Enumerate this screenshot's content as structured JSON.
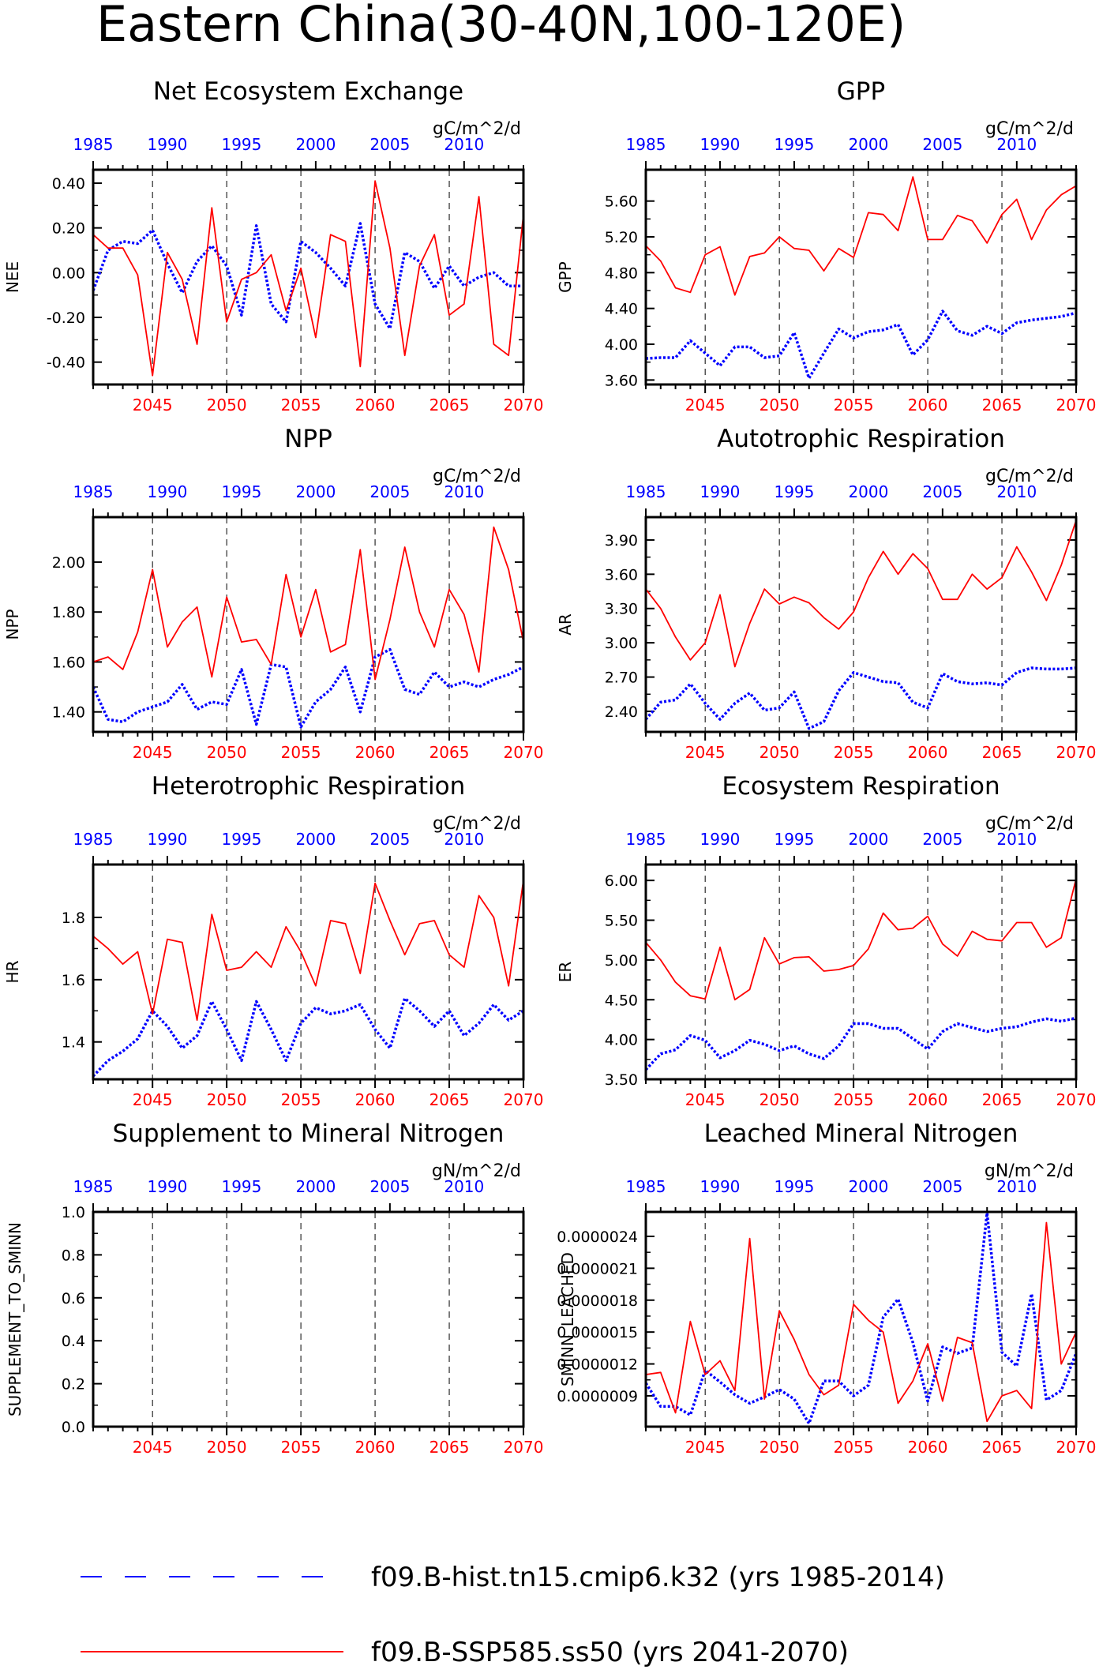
{
  "title": "Eastern China(30-40N,100-120E)",
  "colors": {
    "hist": "#0000ff",
    "ssp": "#ff0000",
    "axis": "#000000"
  },
  "legend": [
    {
      "label": "f09.B-hist.tn15.cmip6.k32 (yrs 1985-2014)",
      "color": "#0000ff",
      "style": "dashed"
    },
    {
      "label": "f09.B-SSP585.ss50 (yrs 2041-2070)",
      "color": "#ff0000",
      "style": "solid"
    }
  ],
  "chart_data": [
    {
      "type": "line",
      "title": "Net Ecosystem Exchange",
      "ylabel": "NEE",
      "units": "gC/m^2/d",
      "top_axis_ticks": [
        "1985",
        "1990",
        "1995",
        "2000",
        "2005",
        "2010"
      ],
      "bottom_axis_ticks": [
        "2045",
        "2050",
        "2055",
        "2060",
        "2065",
        "2070"
      ],
      "ylim": [
        -0.5,
        0.46
      ],
      "yticks": [
        -0.4,
        -0.2,
        0.0,
        0.2,
        0.4
      ],
      "ytick_labels": [
        "-0.40",
        "-0.20",
        "0.00",
        "0.20",
        "0.40"
      ],
      "series": [
        {
          "name": "f09.B-hist.tn15.cmip6.k32 (yrs 1985-2014)",
          "x_start": 1985,
          "values": [
            -0.08,
            0.1,
            0.14,
            0.13,
            0.19,
            0.04,
            -0.09,
            0.05,
            0.12,
            0.03,
            -0.19,
            0.21,
            -0.14,
            -0.22,
            0.14,
            0.09,
            0.02,
            -0.06,
            0.22,
            -0.14,
            -0.25,
            0.09,
            0.05,
            -0.07,
            0.03,
            -0.06,
            -0.02,
            0.0,
            -0.06,
            -0.06
          ]
        },
        {
          "name": "f09.B-SSP585.ss50 (yrs 2041-2070)",
          "x_start": 2041,
          "values": [
            0.17,
            0.11,
            0.11,
            -0.01,
            -0.46,
            0.09,
            -0.03,
            -0.32,
            0.29,
            -0.22,
            -0.03,
            0.0,
            0.08,
            -0.17,
            0.02,
            -0.29,
            0.17,
            0.14,
            -0.42,
            0.41,
            0.11,
            -0.37,
            0.03,
            0.17,
            -0.19,
            -0.14,
            0.34,
            -0.32,
            -0.37,
            0.26
          ]
        }
      ]
    },
    {
      "type": "line",
      "title": "GPP",
      "ylabel": "GPP",
      "units": "gC/m^2/d",
      "top_axis_ticks": [
        "1985",
        "1990",
        "1995",
        "2000",
        "2005",
        "2010"
      ],
      "bottom_axis_ticks": [
        "2045",
        "2050",
        "2055",
        "2060",
        "2065",
        "2070"
      ],
      "ylim": [
        3.55,
        5.95
      ],
      "yticks": [
        3.6,
        4.0,
        4.4,
        4.8,
        5.2,
        5.6
      ],
      "ytick_labels": [
        "3.60",
        "4.00",
        "4.40",
        "4.80",
        "5.20",
        "5.60"
      ],
      "series": [
        {
          "name": "f09.B-hist.tn15.cmip6.k32 (yrs 1985-2014)",
          "x_start": 1985,
          "values": [
            3.84,
            3.85,
            3.85,
            4.04,
            3.9,
            3.76,
            3.97,
            3.97,
            3.85,
            3.87,
            4.13,
            3.62,
            3.9,
            4.17,
            4.07,
            4.14,
            4.16,
            4.22,
            3.88,
            4.05,
            4.37,
            4.15,
            4.1,
            4.2,
            4.12,
            4.24,
            4.27,
            4.29,
            4.31,
            4.35
          ]
        },
        {
          "name": "f09.B-SSP585.ss50 (yrs 2041-2070)",
          "x_start": 2041,
          "values": [
            5.1,
            4.93,
            4.63,
            4.58,
            5.0,
            5.09,
            4.55,
            4.98,
            5.02,
            5.2,
            5.07,
            5.05,
            4.82,
            5.07,
            4.97,
            5.47,
            5.45,
            5.27,
            5.87,
            5.17,
            5.17,
            5.44,
            5.38,
            5.13,
            5.45,
            5.62,
            5.17,
            5.5,
            5.67,
            5.77
          ]
        }
      ]
    },
    {
      "type": "line",
      "title": "NPP",
      "ylabel": "NPP",
      "units": "gC/m^2/d",
      "top_axis_ticks": [
        "1985",
        "1990",
        "1995",
        "2000",
        "2005",
        "2010"
      ],
      "bottom_axis_ticks": [
        "2045",
        "2050",
        "2055",
        "2060",
        "2065",
        "2070"
      ],
      "ylim": [
        1.32,
        2.18
      ],
      "yticks": [
        1.4,
        1.6,
        1.8,
        2.0
      ],
      "ytick_labels": [
        "1.40",
        "1.60",
        "1.80",
        "2.00"
      ],
      "series": [
        {
          "name": "f09.B-hist.tn15.cmip6.k32 (yrs 1985-2014)",
          "x_start": 1985,
          "values": [
            1.5,
            1.37,
            1.36,
            1.4,
            1.42,
            1.44,
            1.51,
            1.41,
            1.44,
            1.43,
            1.57,
            1.35,
            1.59,
            1.58,
            1.34,
            1.44,
            1.49,
            1.58,
            1.4,
            1.62,
            1.65,
            1.49,
            1.47,
            1.56,
            1.5,
            1.52,
            1.5,
            1.53,
            1.55,
            1.58
          ]
        },
        {
          "name": "f09.B-SSP585.ss50 (yrs 2041-2070)",
          "x_start": 2041,
          "values": [
            1.6,
            1.62,
            1.57,
            1.72,
            1.97,
            1.66,
            1.76,
            1.82,
            1.54,
            1.86,
            1.68,
            1.69,
            1.59,
            1.95,
            1.7,
            1.89,
            1.64,
            1.67,
            2.05,
            1.53,
            1.77,
            2.06,
            1.8,
            1.66,
            1.89,
            1.79,
            1.56,
            2.14,
            1.97,
            1.68
          ]
        }
      ]
    },
    {
      "type": "line",
      "title": "Autotrophic Respiration",
      "ylabel": "AR",
      "units": "gC/m^2/d",
      "top_axis_ticks": [
        "1985",
        "1990",
        "1995",
        "2000",
        "2005",
        "2010"
      ],
      "bottom_axis_ticks": [
        "2045",
        "2050",
        "2055",
        "2060",
        "2065",
        "2070"
      ],
      "ylim": [
        2.22,
        4.1
      ],
      "yticks": [
        2.4,
        2.7,
        3.0,
        3.3,
        3.6,
        3.9
      ],
      "ytick_labels": [
        "2.40",
        "2.70",
        "3.00",
        "3.30",
        "3.60",
        "3.90"
      ],
      "series": [
        {
          "name": "f09.B-hist.tn15.cmip6.k32 (yrs 1985-2014)",
          "x_start": 1985,
          "values": [
            2.33,
            2.48,
            2.5,
            2.64,
            2.47,
            2.33,
            2.47,
            2.56,
            2.41,
            2.43,
            2.57,
            2.25,
            2.31,
            2.58,
            2.74,
            2.7,
            2.66,
            2.65,
            2.48,
            2.43,
            2.73,
            2.66,
            2.64,
            2.65,
            2.63,
            2.74,
            2.78,
            2.77,
            2.77,
            2.78
          ]
        },
        {
          "name": "f09.B-SSP585.ss50 (yrs 2041-2070)",
          "x_start": 2041,
          "values": [
            3.47,
            3.3,
            3.05,
            2.85,
            3.0,
            3.42,
            2.79,
            3.17,
            3.47,
            3.34,
            3.4,
            3.35,
            3.22,
            3.12,
            3.27,
            3.57,
            3.8,
            3.6,
            3.78,
            3.65,
            3.38,
            3.38,
            3.6,
            3.47,
            3.57,
            3.84,
            3.62,
            3.37,
            3.68,
            4.07
          ]
        }
      ]
    },
    {
      "type": "line",
      "title": "Heterotrophic Respiration",
      "ylabel": "HR",
      "units": "gC/m^2/d",
      "top_axis_ticks": [
        "1985",
        "1990",
        "1995",
        "2000",
        "2005",
        "2010"
      ],
      "bottom_axis_ticks": [
        "2045",
        "2050",
        "2055",
        "2060",
        "2065",
        "2070"
      ],
      "ylim": [
        1.28,
        1.97
      ],
      "yticks": [
        1.4,
        1.6,
        1.8
      ],
      "ytick_labels": [
        "1.4",
        "1.6",
        "1.8"
      ],
      "series": [
        {
          "name": "f09.B-hist.tn15.cmip6.k32 (yrs 1985-2014)",
          "x_start": 1985,
          "values": [
            1.29,
            1.34,
            1.37,
            1.41,
            1.5,
            1.45,
            1.38,
            1.42,
            1.53,
            1.44,
            1.34,
            1.53,
            1.44,
            1.34,
            1.46,
            1.51,
            1.49,
            1.5,
            1.52,
            1.44,
            1.38,
            1.54,
            1.5,
            1.45,
            1.5,
            1.42,
            1.46,
            1.52,
            1.47,
            1.5
          ]
        },
        {
          "name": "f09.B-SSP585.ss50 (yrs 2041-2070)",
          "x_start": 2041,
          "values": [
            1.74,
            1.7,
            1.65,
            1.69,
            1.49,
            1.73,
            1.72,
            1.47,
            1.81,
            1.63,
            1.64,
            1.69,
            1.64,
            1.77,
            1.69,
            1.58,
            1.79,
            1.78,
            1.62,
            1.91,
            1.79,
            1.68,
            1.78,
            1.79,
            1.68,
            1.64,
            1.87,
            1.8,
            1.58,
            1.92
          ]
        }
      ]
    },
    {
      "type": "line",
      "title": "Ecosystem Respiration",
      "ylabel": "ER",
      "units": "gC/m^2/d",
      "top_axis_ticks": [
        "1985",
        "1990",
        "1995",
        "2000",
        "2005",
        "2010"
      ],
      "bottom_axis_ticks": [
        "2045",
        "2050",
        "2055",
        "2060",
        "2065",
        "2070"
      ],
      "ylim": [
        3.5,
        6.2
      ],
      "yticks": [
        3.5,
        4.0,
        4.5,
        5.0,
        5.5,
        6.0
      ],
      "ytick_labels": [
        "3.50",
        "4.00",
        "4.50",
        "5.00",
        "5.50",
        "6.00"
      ],
      "series": [
        {
          "name": "f09.B-hist.tn15.cmip6.k32 (yrs 1985-2014)",
          "x_start": 1985,
          "values": [
            3.62,
            3.82,
            3.87,
            4.05,
            3.99,
            3.77,
            3.86,
            3.99,
            3.94,
            3.86,
            3.92,
            3.82,
            3.76,
            3.92,
            4.2,
            4.2,
            4.14,
            4.14,
            4.01,
            3.88,
            4.1,
            4.2,
            4.15,
            4.1,
            4.14,
            4.16,
            4.22,
            4.26,
            4.23,
            4.27
          ]
        },
        {
          "name": "f09.B-SSP585.ss50 (yrs 2041-2070)",
          "x_start": 2041,
          "values": [
            5.22,
            5.0,
            4.72,
            4.55,
            4.51,
            5.16,
            4.5,
            4.63,
            5.28,
            4.95,
            5.03,
            5.04,
            4.86,
            4.88,
            4.93,
            5.14,
            5.59,
            5.38,
            5.4,
            5.55,
            5.2,
            5.05,
            5.36,
            5.26,
            5.24,
            5.47,
            5.47,
            5.16,
            5.28,
            6.02
          ]
        }
      ]
    },
    {
      "type": "line",
      "title": "Supplement to Mineral Nitrogen",
      "ylabel": "SUPPLEMENT_TO_SMINN",
      "units": "gN/m^2/d",
      "top_axis_ticks": [
        "1985",
        "1990",
        "1995",
        "2000",
        "2005",
        "2010"
      ],
      "bottom_axis_ticks": [
        "2045",
        "2050",
        "2055",
        "2060",
        "2065",
        "2070"
      ],
      "ylim": [
        0.0,
        1.0
      ],
      "yticks": [
        0.0,
        0.2,
        0.4,
        0.6,
        0.8,
        1.0
      ],
      "ytick_labels": [
        "0.0",
        "0.2",
        "0.4",
        "0.6",
        "0.8",
        "1.0"
      ],
      "series": []
    },
    {
      "type": "line",
      "title": "Leached Mineral Nitrogen",
      "ylabel": "SMINN_LEACHED",
      "units": "gN/m^2/d",
      "top_axis_ticks": [
        "1985",
        "1990",
        "1995",
        "2000",
        "2005",
        "2010"
      ],
      "bottom_axis_ticks": [
        "2045",
        "2050",
        "2055",
        "2060",
        "2065",
        "2070"
      ],
      "ylim": [
        6.1e-07,
        2.63e-06
      ],
      "yticks": [
        9e-07,
        1.2e-06,
        1.5e-06,
        1.8e-06,
        2.1e-06,
        2.4e-06
      ],
      "ytick_labels": [
        "0.0000009",
        "0.0000012",
        "0.0000015",
        "0.0000018",
        "0.0000021",
        "0.0000024"
      ],
      "series": [
        {
          "name": "f09.B-hist.tn15.cmip6.k32 (yrs 1985-2014)",
          "x_start": 1985,
          "values": [
            1.02e-06,
            8e-07,
            8e-07,
            7.2e-07,
            1.14e-06,
            1.03e-06,
            9.1e-07,
            8.3e-07,
            8.9e-07,
            9.6e-07,
            8.7e-07,
            6.4e-07,
            1.04e-06,
            1.04e-06,
            9e-07,
            1e-06,
            1.64e-06,
            1.81e-06,
            1.4e-06,
            8.5e-07,
            1.36e-06,
            1.3e-06,
            1.35e-06,
            2.62e-06,
            1.31e-06,
            1.18e-06,
            1.86e-06,
            8.6e-07,
            9.5e-07,
            1.3e-06
          ]
        },
        {
          "name": "f09.B-SSP585.ss50 (yrs 2041-2070)",
          "x_start": 2041,
          "values": [
            1.1e-06,
            1.12e-06,
            7.4e-07,
            1.6e-06,
            1.1e-06,
            1.23e-06,
            9.5e-07,
            2.38e-06,
            8.7e-07,
            1.7e-06,
            1.43e-06,
            1.1e-06,
            9.1e-07,
            1e-06,
            1.76e-06,
            1.61e-06,
            1.5e-06,
            8.3e-07,
            1.04e-06,
            1.39e-06,
            8.5e-07,
            1.45e-06,
            1.4e-06,
            6.6e-07,
            9e-07,
            9.5e-07,
            7.8e-07,
            2.53e-06,
            1.2e-06,
            1.5e-06
          ]
        }
      ]
    }
  ]
}
